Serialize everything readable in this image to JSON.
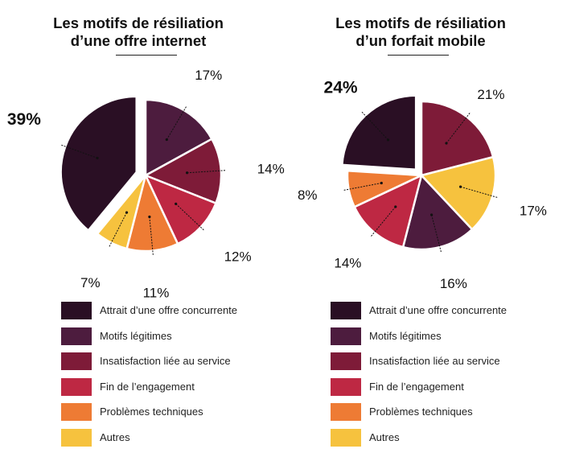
{
  "colors": {
    "attrait": "#2a0f24",
    "motifs": "#4d1c3e",
    "insatisfaction": "#7e1b38",
    "fin": "#be2843",
    "problemes": "#ee7b34",
    "autres": "#f6c23e"
  },
  "chart_data": [
    {
      "type": "pie",
      "title_line1": "Les motifs de résiliation",
      "title_line2": "d’une offre internet",
      "slices": [
        {
          "label": "Attrait d’une offre concurrente",
          "value": 39,
          "text": "39%",
          "color_key": "attrait",
          "exploded": true
        },
        {
          "label": "Motifs légitimes",
          "value": 17,
          "text": "17%",
          "color_key": "motifs"
        },
        {
          "label": "Insatisfaction liée au service",
          "value": 14,
          "text": "14%",
          "color_key": "insatisfaction"
        },
        {
          "label": "Fin de l’engagement",
          "value": 12,
          "text": "12%",
          "color_key": "fin"
        },
        {
          "label": "Problèmes techniques",
          "value": 11,
          "text": "11%",
          "color_key": "problemes"
        },
        {
          "label": "Autres",
          "value": 7,
          "text": "7%",
          "color_key": "autres"
        }
      ],
      "legend_placement": "bottom"
    },
    {
      "type": "pie",
      "title_line1": "Les motifs de résiliation",
      "title_line2": "d’un forfait mobile",
      "slices": [
        {
          "label": "Attrait d’une offre concurrente",
          "value": 24,
          "text": "24%",
          "color_key": "attrait",
          "exploded": true
        },
        {
          "label": "Insatisfaction liée au service",
          "value": 21,
          "text": "21%",
          "color_key": "insatisfaction"
        },
        {
          "label": "Autres",
          "value": 17,
          "text": "17%",
          "color_key": "autres"
        },
        {
          "label": "Motifs légitimes",
          "value": 16,
          "text": "16%",
          "color_key": "motifs"
        },
        {
          "label": "Fin de l’engagement",
          "value": 14,
          "text": "14%",
          "color_key": "fin"
        },
        {
          "label": "Problèmes techniques",
          "value": 8,
          "text": "8%",
          "color_key": "problemes"
        }
      ],
      "legend_placement": "bottom"
    }
  ],
  "legend": [
    {
      "label": "Attrait d’une offre concurrente",
      "color_key": "attrait"
    },
    {
      "label": "Motifs légitimes",
      "color_key": "motifs"
    },
    {
      "label": "Insatisfaction liée au service",
      "color_key": "insatisfaction"
    },
    {
      "label": "Fin de l’engagement",
      "color_key": "fin"
    },
    {
      "label": "Problèmes techniques",
      "color_key": "problemes"
    },
    {
      "label": "Autres",
      "color_key": "autres"
    }
  ]
}
